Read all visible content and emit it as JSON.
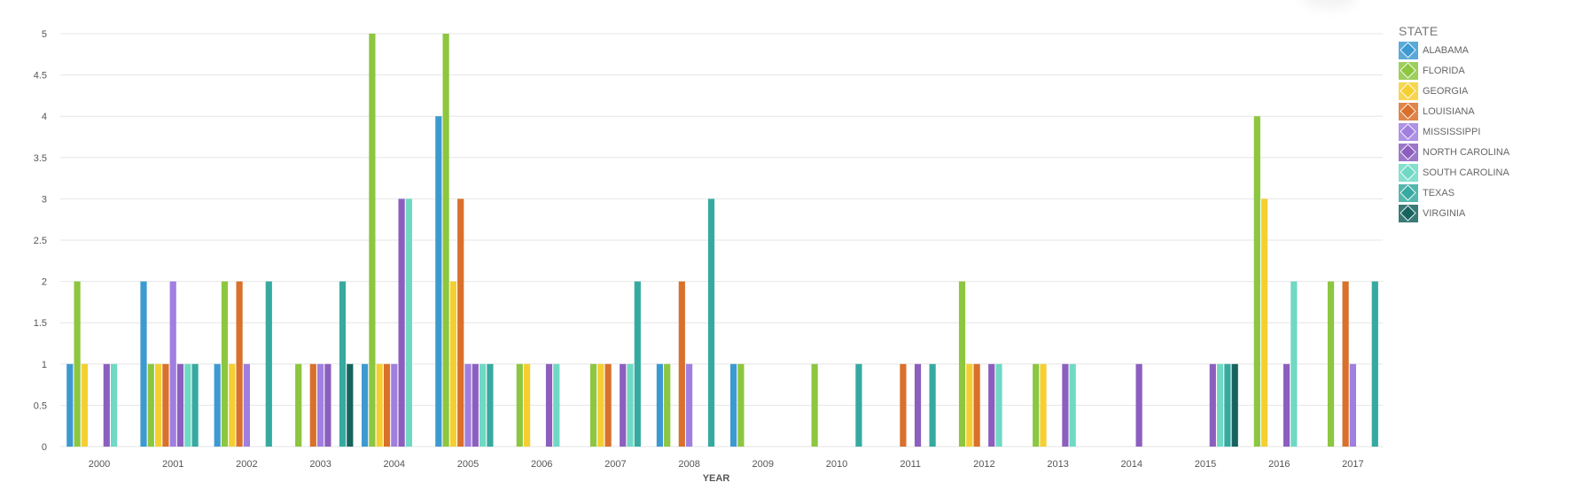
{
  "chart_data": {
    "type": "bar",
    "xlabel": "YEAR",
    "ylabel": "",
    "ylim": [
      0,
      5
    ],
    "yticks": [
      "0",
      "0.5",
      "1",
      "1.5",
      "2",
      "2.5",
      "3",
      "3.5",
      "4",
      "4.5",
      "5"
    ],
    "grid": true,
    "legend_title": "STATE",
    "legend_position": "right",
    "categories": [
      "2000",
      "2001",
      "2002",
      "2003",
      "2004",
      "2005",
      "2006",
      "2007",
      "2008",
      "2009",
      "2010",
      "2011",
      "2012",
      "2013",
      "2014",
      "2015",
      "2016",
      "2017"
    ],
    "series": [
      {
        "name": "ALABAMA",
        "color": "#3d9ad1",
        "values": [
          1,
          2,
          1,
          0,
          1,
          4,
          0,
          0,
          1,
          1,
          0,
          0,
          0,
          0,
          0,
          0,
          0,
          0
        ]
      },
      {
        "name": "FLORIDA",
        "color": "#8dc63f",
        "values": [
          2,
          1,
          2,
          1,
          5,
          5,
          1,
          1,
          1,
          1,
          1,
          0,
          2,
          1,
          0,
          0,
          4,
          2
        ]
      },
      {
        "name": "GEORGIA",
        "color": "#f5cf32",
        "values": [
          1,
          1,
          1,
          0,
          1,
          2,
          1,
          1,
          0,
          0,
          0,
          0,
          1,
          1,
          0,
          0,
          3,
          0
        ]
      },
      {
        "name": "LOUISIANA",
        "color": "#d9702c",
        "values": [
          0,
          1,
          2,
          1,
          1,
          3,
          0,
          1,
          2,
          0,
          0,
          1,
          1,
          0,
          0,
          0,
          0,
          2
        ]
      },
      {
        "name": "MISSISSIPPI",
        "color": "#a07fe0",
        "values": [
          0,
          2,
          1,
          1,
          1,
          1,
          0,
          0,
          1,
          0,
          0,
          0,
          0,
          0,
          0,
          0,
          0,
          1
        ]
      },
      {
        "name": "NORTH CAROLINA",
        "color": "#8c5fbf",
        "values": [
          1,
          1,
          0,
          1,
          3,
          1,
          1,
          1,
          0,
          0,
          0,
          1,
          1,
          1,
          1,
          1,
          1,
          0
        ]
      },
      {
        "name": "SOUTH CAROLINA",
        "color": "#6fd9c4",
        "values": [
          1,
          1,
          0,
          0,
          3,
          1,
          1,
          1,
          0,
          0,
          0,
          0,
          1,
          1,
          0,
          1,
          2,
          0
        ]
      },
      {
        "name": "TEXAS",
        "color": "#36aaa0",
        "values": [
          0,
          1,
          2,
          2,
          0,
          1,
          0,
          2,
          3,
          0,
          1,
          1,
          0,
          0,
          0,
          1,
          0,
          2
        ]
      },
      {
        "name": "VIRGINIA",
        "color": "#17635e",
        "values": [
          0,
          0,
          0,
          1,
          0,
          0,
          0,
          0,
          0,
          0,
          0,
          0,
          0,
          0,
          0,
          1,
          0,
          0
        ]
      }
    ]
  }
}
